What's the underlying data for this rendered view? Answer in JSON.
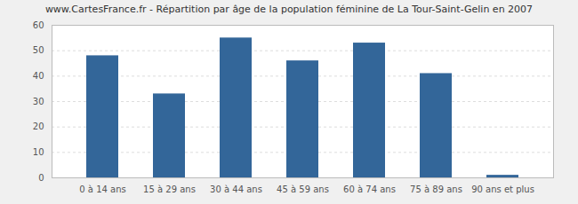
{
  "chart_data": {
    "type": "bar",
    "title": "www.CartesFrance.fr - Répartition par âge de la population féminine de La Tour-Saint-Gelin en 2007",
    "categories": [
      "0 à 14 ans",
      "15 à 29 ans",
      "30 à 44 ans",
      "45 à 59 ans",
      "60 à 74 ans",
      "75 à 89 ans",
      "90 ans et plus"
    ],
    "values": [
      48,
      33,
      55,
      46,
      53,
      41,
      1
    ],
    "color": "#336699",
    "ylim": [
      0,
      60
    ],
    "yticks": [
      0,
      10,
      20,
      30,
      40,
      50,
      60
    ],
    "grid": true
  }
}
